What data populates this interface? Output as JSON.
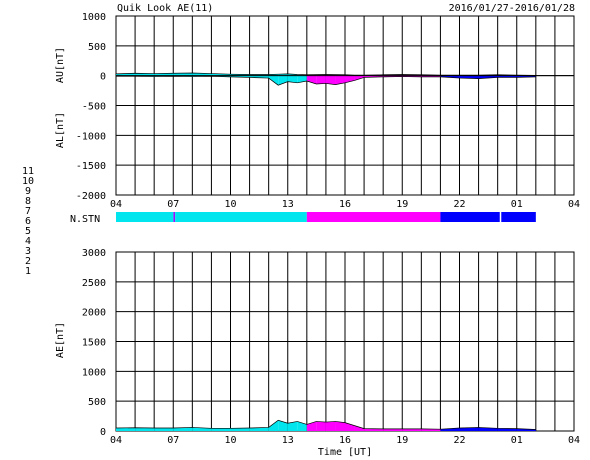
{
  "header": {
    "title": "Quik Look AE(11)",
    "date_range": "2016/01/27-2016/01/28"
  },
  "chart_data": [
    {
      "type": "area",
      "panel": "AU / AL",
      "ylabel_upper": "AU[nT]",
      "ylabel_lower": "AL[nT]",
      "ylim": [
        -2000,
        1000
      ],
      "yticks": [
        1000,
        500,
        0,
        -500,
        -1000,
        -1500,
        -2000
      ],
      "xlim_hours": [
        4,
        28
      ],
      "xticks": [
        "04",
        "07",
        "10",
        "13",
        "16",
        "19",
        "22",
        "01",
        "04"
      ],
      "grid": true,
      "au_series": {
        "x": [
          4,
          5,
          6,
          7,
          8,
          9,
          10,
          11,
          12,
          12.5,
          13,
          13.5,
          14,
          15,
          16,
          16.5,
          17,
          18,
          19,
          20,
          21,
          22,
          23,
          24,
          25,
          26
        ],
        "values": [
          30,
          40,
          35,
          40,
          45,
          35,
          25,
          20,
          20,
          25,
          30,
          20,
          15,
          20,
          15,
          10,
          10,
          15,
          20,
          15,
          10,
          10,
          10,
          15,
          10,
          5
        ]
      },
      "al_series": {
        "x": [
          4,
          5,
          6,
          7,
          8,
          9,
          10,
          11,
          12,
          12.5,
          13,
          13.5,
          14,
          14.5,
          15,
          15.5,
          16,
          16.5,
          17,
          18,
          19,
          20,
          21,
          22,
          23,
          24,
          25,
          26
        ],
        "values": [
          -10,
          -10,
          -15,
          -10,
          -15,
          -10,
          -20,
          -30,
          -40,
          -160,
          -100,
          -120,
          -90,
          -140,
          -130,
          -150,
          -120,
          -80,
          -30,
          -20,
          -15,
          -20,
          -20,
          -40,
          -50,
          -30,
          -30,
          -20
        ]
      }
    },
    {
      "type": "bar",
      "panel": "N.STN",
      "label": "N.STN",
      "x": [
        4,
        7,
        7.1,
        14,
        21,
        24.1,
        24.2,
        26
      ],
      "values": [
        11,
        11,
        11,
        10,
        9,
        9,
        9,
        9
      ]
    },
    {
      "type": "area",
      "panel": "AE",
      "ylabel": "AE[nT]",
      "xlabel": "Time [UT]",
      "ylim": [
        0,
        3000
      ],
      "yticks": [
        3000,
        2500,
        2000,
        1500,
        1000,
        500,
        0
      ],
      "xlim_hours": [
        4,
        28
      ],
      "xticks": [
        "04",
        "07",
        "10",
        "13",
        "16",
        "19",
        "22",
        "01",
        "04"
      ],
      "grid": true,
      "series": {
        "x": [
          4,
          5,
          6,
          7,
          8,
          9,
          10,
          11,
          12,
          12.5,
          13,
          13.5,
          14,
          14.5,
          15,
          15.5,
          16,
          16.5,
          17,
          18,
          19,
          20,
          21,
          22,
          23,
          24,
          25,
          26
        ],
        "values": [
          50,
          55,
          50,
          50,
          60,
          45,
          45,
          50,
          60,
          180,
          130,
          160,
          110,
          160,
          150,
          160,
          140,
          90,
          40,
          35,
          35,
          35,
          30,
          50,
          60,
          45,
          40,
          25
        ]
      }
    }
  ],
  "station_legend": [
    {
      "number": "11",
      "color": "#00e5ee"
    },
    {
      "number": "10",
      "color": "#ff00ff"
    },
    {
      "number": "9",
      "color": "#0000ff"
    },
    {
      "number": "8",
      "color": "#ffd700"
    },
    {
      "number": "7",
      "color": "#ffff00"
    },
    {
      "number": "6",
      "color": "#ff0000"
    },
    {
      "number": "5",
      "color": "#cccccc"
    },
    {
      "number": "4",
      "color": "#66cccc"
    },
    {
      "number": "3",
      "color": "#00aa00"
    },
    {
      "number": "2",
      "color": "#aa00aa"
    },
    {
      "number": "1",
      "color": "#0000cc"
    }
  ],
  "colors": {
    "stn11": "#00e5ee",
    "stn10": "#ff00ff",
    "stn9": "#0000ff"
  }
}
